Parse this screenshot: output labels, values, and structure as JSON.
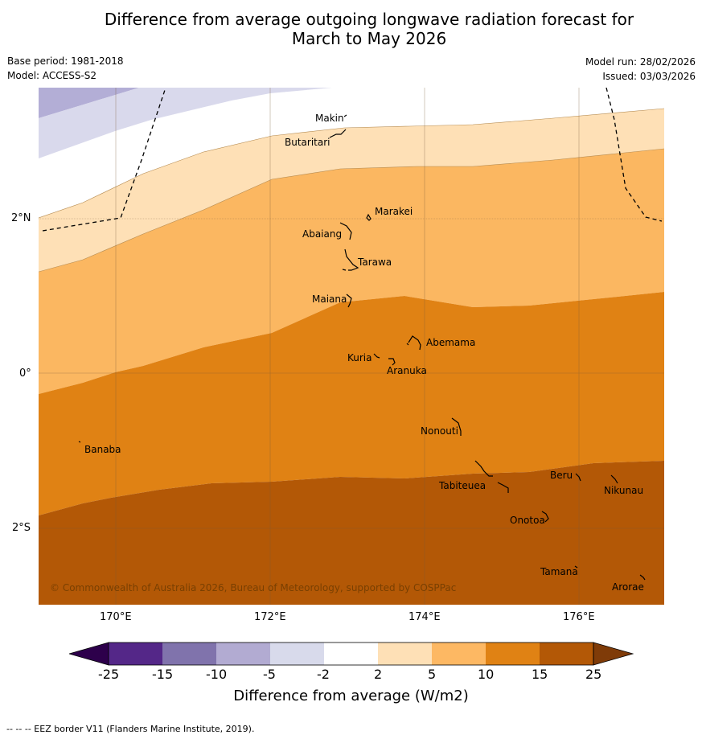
{
  "title_line1": "Difference from average outgoing longwave radiation forecast for",
  "title_line2": "March to May 2026",
  "meta": {
    "base_period": "Base period: 1981-2018",
    "model": "Model: ACCESS-S2",
    "model_run": "Model run: 28/02/2026",
    "issued": "Issued: 03/03/2026"
  },
  "map": {
    "copyright": "© Commonwealth of Australia 2026, Bureau of Meteorology, supported by COSPPac",
    "lat_labels": [
      "2°N",
      "0°",
      "2°S"
    ],
    "lon_labels": [
      "170°E",
      "172°E",
      "174°E",
      "176°E"
    ],
    "places": [
      "Makin",
      "Butaritari",
      "Marakei",
      "Abaiang",
      "Tarawa",
      "Maiana",
      "Abemama",
      "Kuria",
      "Aranuka",
      "Nonouti",
      "Banaba",
      "Tabiteuea",
      "Beru",
      "Nikunau",
      "Onotoa",
      "Tamana",
      "Arorae"
    ],
    "colors": {
      "band_m10_m5": "#b3aed6",
      "band_m5_m2": "#d9d9ec",
      "band_2_5": "#fee0b6",
      "band_5_10": "#fbb761",
      "band_10_15": "#e08214",
      "band_15_25": "#b35806",
      "eez_line": "#000000",
      "grid_line": "#7a5a3a"
    }
  },
  "colorbar": {
    "label": "Difference from average (W/m2)",
    "ticks": [
      "-25",
      "-15",
      "-10",
      "-5",
      "-2",
      "2",
      "5",
      "10",
      "15",
      "25"
    ],
    "colors": [
      "#2d004b",
      "#542788",
      "#8073ac",
      "#b2abd2",
      "#d8daeb",
      "#ffffff",
      "#fee0b6",
      "#fdb863",
      "#e08214",
      "#b35806",
      "#7f3b08"
    ]
  },
  "footer": "--  --  -- EEZ border V11 (Flanders Marine Institute, 2019)."
}
